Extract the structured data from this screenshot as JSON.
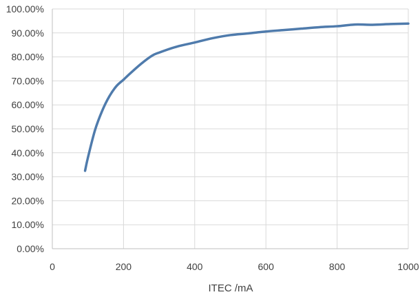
{
  "chart_data": {
    "type": "line",
    "title": "",
    "xlabel": "ITEC /mA",
    "ylabel": "",
    "xlim": [
      0,
      1000
    ],
    "ylim": [
      0,
      100
    ],
    "x_ticks": [
      0,
      200,
      400,
      600,
      800,
      1000
    ],
    "y_ticks": [
      "0.00%",
      "10.00%",
      "20.00%",
      "30.00%",
      "40.00%",
      "50.00%",
      "60.00%",
      "70.00%",
      "80.00%",
      "90.00%",
      "100.00%"
    ],
    "grid": true,
    "legend": "none",
    "colors": {
      "series": "#4f7bac",
      "grid": "#d9d9d9",
      "axis": "#bfbfbf",
      "text": "#404040"
    },
    "series": [
      {
        "x": [
          92,
          100,
          120,
          140,
          160,
          180,
          200,
          220,
          250,
          280,
          300,
          350,
          400,
          450,
          500,
          550,
          600,
          650,
          700,
          750,
          800,
          850,
          900,
          950,
          1000
        ],
        "y": [
          32.5,
          38,
          49.5,
          57.5,
          63.5,
          67.8,
          70.5,
          73.3,
          77.2,
          80.5,
          81.8,
          84.3,
          86.0,
          87.8,
          89.1,
          89.8,
          90.6,
          91.2,
          91.8,
          92.4,
          92.8,
          93.5,
          93.4,
          93.7,
          93.9
        ]
      }
    ]
  }
}
